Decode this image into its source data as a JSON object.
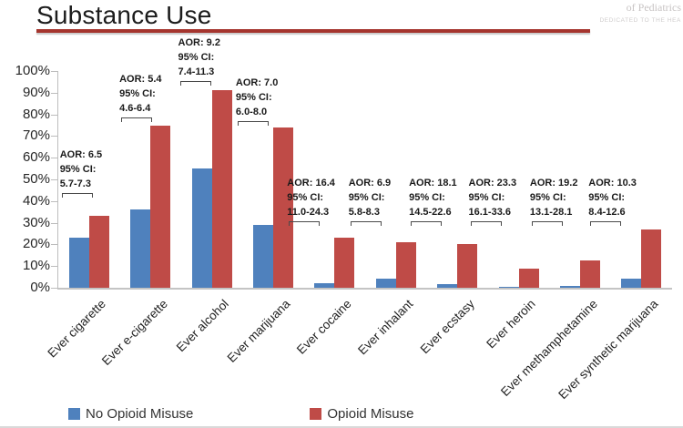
{
  "header": {
    "title": "Substance Use",
    "watermark_line1": "of Pediatrics",
    "watermark_line2": "DEDICATED TO THE HEA"
  },
  "colors": {
    "no_opioid_misuse": "#4f81bd",
    "opioid_misuse": "#bf4b47",
    "title_rule": "#a5352e",
    "axis": "#bdbdbd"
  },
  "legend": [
    {
      "label": "No Opioid Misuse",
      "color": "#4f81bd"
    },
    {
      "label": "Opioid Misuse",
      "color": "#bf4b47"
    }
  ],
  "chart_data": {
    "type": "bar",
    "title": "Substance Use",
    "categories": [
      "Ever cigarette",
      "Ever e-cigarette",
      "Ever alcohol",
      "Ever marijuana",
      "Ever cocaine",
      "Ever inhalant",
      "Ever ecstasy",
      "Ever heroin",
      "Ever methamphetamine",
      "Ever synthetic marijuana"
    ],
    "series": [
      {
        "name": "No Opioid Misuse",
        "color": "#4f81bd",
        "values": [
          23,
          36,
          55,
          29,
          2,
          4,
          1.5,
          0.5,
          1,
          4
        ]
      },
      {
        "name": "Opioid Misuse",
        "color": "#bf4b47",
        "values": [
          33,
          75,
          91,
          74,
          23,
          21,
          20,
          9,
          12.5,
          27
        ]
      }
    ],
    "annotations": [
      {
        "aor": "AOR: 6.5",
        "ci_label": "95% CI:",
        "ci_range": "5.7-7.3"
      },
      {
        "aor": "AOR: 5.4",
        "ci_label": "95% CI:",
        "ci_range": "4.6-6.4"
      },
      {
        "aor": "AOR: 9.2",
        "ci_label": "95% CI:",
        "ci_range": "7.4-11.3"
      },
      {
        "aor": "AOR: 7.0",
        "ci_label": "95% CI:",
        "ci_range": "6.0-8.0"
      },
      {
        "aor": "AOR: 16.4",
        "ci_label": "95% CI:",
        "ci_range": "11.0-24.3"
      },
      {
        "aor": "AOR: 6.9",
        "ci_label": "95% CI:",
        "ci_range": "5.8-8.3"
      },
      {
        "aor": "AOR: 18.1",
        "ci_label": "95% CI:",
        "ci_range": "14.5-22.6"
      },
      {
        "aor": "AOR: 23.3",
        "ci_label": "95% CI:",
        "ci_range": "16.1-33.6"
      },
      {
        "aor": "AOR: 19.2",
        "ci_label": "95% CI:",
        "ci_range": "13.1-28.1"
      },
      {
        "aor": "AOR: 10.3",
        "ci_label": "95% CI:",
        "ci_range": "8.4-12.6"
      }
    ],
    "y_tick_labels": [
      "100%",
      "90%",
      "80%",
      "70%",
      "60%",
      "50%",
      "40%",
      "30%",
      "20%",
      "10%",
      "0%"
    ],
    "ylim": [
      0,
      100
    ],
    "ylabel": "",
    "xlabel": "",
    "grid": false,
    "legend_position": "bottom"
  }
}
